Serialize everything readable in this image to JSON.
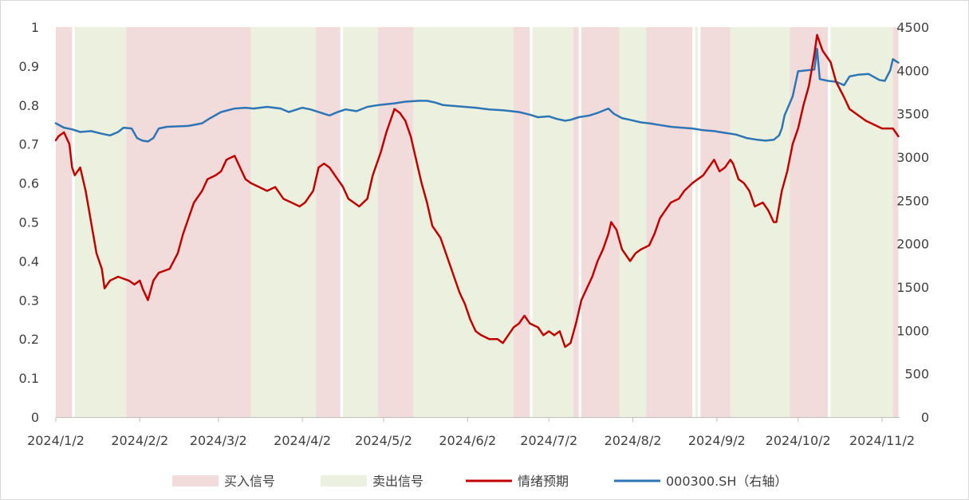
{
  "chart_data": {
    "type": "line",
    "title": "",
    "xlabel": "",
    "ylabel": "",
    "ylim": [
      0,
      1
    ],
    "y2lim": [
      0,
      4500
    ],
    "grid": false,
    "legend_position": "bottom",
    "x_ticks": [
      "2024/1/2",
      "2024/2/2",
      "2024/3/2",
      "2024/4/2",
      "2024/5/2",
      "2024/6/2",
      "2024/7/2",
      "2024/8/2",
      "2024/9/2",
      "2024/10/2",
      "2024/11/2"
    ],
    "y_ticks": [
      "0",
      "0.1",
      "0.2",
      "0.3",
      "0.4",
      "0.5",
      "0.6",
      "0.7",
      "0.8",
      "0.9",
      "1"
    ],
    "y2_ticks": [
      "0",
      "500",
      "1000",
      "1500",
      "2000",
      "2500",
      "3000",
      "3500",
      "4000",
      "4500"
    ],
    "x_start": "2024/1/2",
    "x_end": "2024/11/8",
    "colors": {
      "buy_band": "#f2dcdb",
      "sell_band": "#ebf1de",
      "sentiment": "#c00000",
      "index": "#2e75b6"
    },
    "legend": [
      {
        "label": "买入信号",
        "kind": "band",
        "color": "#f2dcdb"
      },
      {
        "label": "卖出信号",
        "kind": "band",
        "color": "#ebf1de"
      },
      {
        "label": "情绪预期",
        "kind": "line",
        "color": "#c00000"
      },
      {
        "label": "000300.SH（右轴）",
        "kind": "line",
        "color": "#2e75b6"
      }
    ],
    "signal_bands": [
      {
        "type": "buy",
        "start": "2024/1/2",
        "end": "2024/1/8"
      },
      {
        "type": "sell",
        "start": "2024/1/9",
        "end": "2024/1/28"
      },
      {
        "type": "buy",
        "start": "2024/1/28",
        "end": "2024/3/14"
      },
      {
        "type": "sell",
        "start": "2024/3/14",
        "end": "2024/4/7"
      },
      {
        "type": "buy",
        "start": "2024/4/7",
        "end": "2024/4/16"
      },
      {
        "type": "sell",
        "start": "2024/4/17",
        "end": "2024/4/30"
      },
      {
        "type": "buy",
        "start": "2024/4/30",
        "end": "2024/5/13"
      },
      {
        "type": "sell",
        "start": "2024/5/13",
        "end": "2024/6/19"
      },
      {
        "type": "buy",
        "start": "2024/6/19",
        "end": "2024/6/25"
      },
      {
        "type": "sell",
        "start": "2024/6/26",
        "end": "2024/7/11"
      },
      {
        "type": "buy",
        "start": "2024/7/11",
        "end": "2024/7/13"
      },
      {
        "type": "buy",
        "start": "2024/7/14",
        "end": "2024/7/28"
      },
      {
        "type": "sell",
        "start": "2024/7/28",
        "end": "2024/8/7"
      },
      {
        "type": "buy",
        "start": "2024/8/7",
        "end": "2024/8/24"
      },
      {
        "type": "sell",
        "start": "2024/8/25",
        "end": "2024/8/26"
      },
      {
        "type": "buy",
        "start": "2024/8/27",
        "end": "2024/9/7"
      },
      {
        "type": "sell",
        "start": "2024/9/7",
        "end": "2024/9/29"
      },
      {
        "type": "buy",
        "start": "2024/9/29",
        "end": "2024/10/13"
      },
      {
        "type": "sell",
        "start": "2024/10/14",
        "end": "2024/11/6"
      },
      {
        "type": "buy",
        "start": "2024/11/6",
        "end": "2024/11/8"
      }
    ],
    "series": [
      {
        "name": "情绪预期",
        "axis": "left",
        "points": [
          [
            "2024/1/2",
            0.71
          ],
          [
            "2024/1/3",
            0.72
          ],
          [
            "2024/1/5",
            0.73
          ],
          [
            "2024/1/7",
            0.7
          ],
          [
            "2024/1/8",
            0.64
          ],
          [
            "2024/1/9",
            0.62
          ],
          [
            "2024/1/11",
            0.64
          ],
          [
            "2024/1/13",
            0.58
          ],
          [
            "2024/1/15",
            0.5
          ],
          [
            "2024/1/17",
            0.42
          ],
          [
            "2024/1/19",
            0.38
          ],
          [
            "2024/1/20",
            0.33
          ],
          [
            "2024/1/22",
            0.35
          ],
          [
            "2024/1/25",
            0.36
          ],
          [
            "2024/1/29",
            0.35
          ],
          [
            "2024/1/31",
            0.34
          ],
          [
            "2024/2/2",
            0.35
          ],
          [
            "2024/2/3",
            0.33
          ],
          [
            "2024/2/5",
            0.3
          ],
          [
            "2024/2/7",
            0.35
          ],
          [
            "2024/2/9",
            0.37
          ],
          [
            "2024/2/13",
            0.38
          ],
          [
            "2024/2/16",
            0.42
          ],
          [
            "2024/2/18",
            0.47
          ],
          [
            "2024/2/20",
            0.51
          ],
          [
            "2024/2/22",
            0.55
          ],
          [
            "2024/2/25",
            0.58
          ],
          [
            "2024/2/27",
            0.61
          ],
          [
            "2024/3/1",
            0.62
          ],
          [
            "2024/3/3",
            0.63
          ],
          [
            "2024/3/5",
            0.66
          ],
          [
            "2024/3/8",
            0.67
          ],
          [
            "2024/3/10",
            0.64
          ],
          [
            "2024/3/12",
            0.61
          ],
          [
            "2024/3/14",
            0.6
          ],
          [
            "2024/3/17",
            0.59
          ],
          [
            "2024/3/20",
            0.58
          ],
          [
            "2024/3/23",
            0.59
          ],
          [
            "2024/3/26",
            0.56
          ],
          [
            "2024/3/29",
            0.55
          ],
          [
            "2024/4/1",
            0.54
          ],
          [
            "2024/4/3",
            0.55
          ],
          [
            "2024/4/6",
            0.58
          ],
          [
            "2024/4/8",
            0.64
          ],
          [
            "2024/4/10",
            0.65
          ],
          [
            "2024/4/12",
            0.64
          ],
          [
            "2024/4/15",
            0.61
          ],
          [
            "2024/4/17",
            0.59
          ],
          [
            "2024/4/19",
            0.56
          ],
          [
            "2024/4/21",
            0.55
          ],
          [
            "2024/4/23",
            0.54
          ],
          [
            "2024/4/26",
            0.56
          ],
          [
            "2024/4/28",
            0.62
          ],
          [
            "2024/5/1",
            0.68
          ],
          [
            "2024/5/3",
            0.73
          ],
          [
            "2024/5/5",
            0.77
          ],
          [
            "2024/5/6",
            0.79
          ],
          [
            "2024/5/8",
            0.78
          ],
          [
            "2024/5/10",
            0.76
          ],
          [
            "2024/5/12",
            0.72
          ],
          [
            "2024/5/14",
            0.66
          ],
          [
            "2024/5/16",
            0.6
          ],
          [
            "2024/5/18",
            0.55
          ],
          [
            "2024/5/20",
            0.49
          ],
          [
            "2024/5/23",
            0.46
          ],
          [
            "2024/5/26",
            0.4
          ],
          [
            "2024/5/28",
            0.36
          ],
          [
            "2024/5/30",
            0.32
          ],
          [
            "2024/6/1",
            0.29
          ],
          [
            "2024/6/3",
            0.25
          ],
          [
            "2024/6/5",
            0.22
          ],
          [
            "2024/6/7",
            0.21
          ],
          [
            "2024/6/10",
            0.2
          ],
          [
            "2024/6/13",
            0.2
          ],
          [
            "2024/6/15",
            0.19
          ],
          [
            "2024/6/17",
            0.21
          ],
          [
            "2024/6/19",
            0.23
          ],
          [
            "2024/6/21",
            0.24
          ],
          [
            "2024/6/23",
            0.26
          ],
          [
            "2024/6/25",
            0.24
          ],
          [
            "2024/6/28",
            0.23
          ],
          [
            "2024/6/30",
            0.21
          ],
          [
            "2024/7/2",
            0.22
          ],
          [
            "2024/7/4",
            0.21
          ],
          [
            "2024/7/6",
            0.22
          ],
          [
            "2024/7/8",
            0.18
          ],
          [
            "2024/7/10",
            0.19
          ],
          [
            "2024/7/12",
            0.24
          ],
          [
            "2024/7/14",
            0.3
          ],
          [
            "2024/7/16",
            0.33
          ],
          [
            "2024/7/18",
            0.36
          ],
          [
            "2024/7/20",
            0.4
          ],
          [
            "2024/7/22",
            0.43
          ],
          [
            "2024/7/24",
            0.47
          ],
          [
            "2024/7/25",
            0.5
          ],
          [
            "2024/7/27",
            0.48
          ],
          [
            "2024/7/29",
            0.43
          ],
          [
            "2024/7/31",
            0.41
          ],
          [
            "2024/8/1",
            0.4
          ],
          [
            "2024/8/3",
            0.42
          ],
          [
            "2024/8/5",
            0.43
          ],
          [
            "2024/8/8",
            0.44
          ],
          [
            "2024/8/10",
            0.47
          ],
          [
            "2024/8/12",
            0.51
          ],
          [
            "2024/8/14",
            0.53
          ],
          [
            "2024/8/16",
            0.55
          ],
          [
            "2024/8/19",
            0.56
          ],
          [
            "2024/8/21",
            0.58
          ],
          [
            "2024/8/24",
            0.6
          ],
          [
            "2024/8/26",
            0.61
          ],
          [
            "2024/8/28",
            0.62
          ],
          [
            "2024/8/30",
            0.64
          ],
          [
            "2024/9/1",
            0.66
          ],
          [
            "2024/9/3",
            0.63
          ],
          [
            "2024/9/5",
            0.64
          ],
          [
            "2024/9/7",
            0.66
          ],
          [
            "2024/9/8",
            0.65
          ],
          [
            "2024/9/10",
            0.61
          ],
          [
            "2024/9/12",
            0.6
          ],
          [
            "2024/9/14",
            0.58
          ],
          [
            "2024/9/16",
            0.54
          ],
          [
            "2024/9/19",
            0.55
          ],
          [
            "2024/9/21",
            0.53
          ],
          [
            "2024/9/23",
            0.5
          ],
          [
            "2024/9/24",
            0.5
          ],
          [
            "2024/9/26",
            0.58
          ],
          [
            "2024/9/28",
            0.63
          ],
          [
            "2024/9/30",
            0.7
          ],
          [
            "2024/10/2",
            0.74
          ],
          [
            "2024/10/4",
            0.8
          ],
          [
            "2024/10/6",
            0.85
          ],
          [
            "2024/10/8",
            0.93
          ],
          [
            "2024/10/9",
            0.98
          ],
          [
            "2024/10/11",
            0.94
          ],
          [
            "2024/10/14",
            0.91
          ],
          [
            "2024/10/16",
            0.86
          ],
          [
            "2024/10/19",
            0.82
          ],
          [
            "2024/10/21",
            0.79
          ],
          [
            "2024/10/23",
            0.78
          ],
          [
            "2024/10/25",
            0.77
          ],
          [
            "2024/10/27",
            0.76
          ],
          [
            "2024/10/30",
            0.75
          ],
          [
            "2024/11/2",
            0.74
          ],
          [
            "2024/11/4",
            0.74
          ],
          [
            "2024/11/6",
            0.74
          ],
          [
            "2024/11/8",
            0.72
          ]
        ]
      },
      {
        "name": "000300.SH（右轴）",
        "axis": "right",
        "points": [
          [
            "2024/1/2",
            3390
          ],
          [
            "2024/1/5",
            3340
          ],
          [
            "2024/1/8",
            3320
          ],
          [
            "2024/1/11",
            3290
          ],
          [
            "2024/1/15",
            3300
          ],
          [
            "2024/1/19",
            3270
          ],
          [
            "2024/1/22",
            3250
          ],
          [
            "2024/1/25",
            3290
          ],
          [
            "2024/1/27",
            3340
          ],
          [
            "2024/1/30",
            3330
          ],
          [
            "2024/2/1",
            3220
          ],
          [
            "2024/2/3",
            3190
          ],
          [
            "2024/2/5",
            3180
          ],
          [
            "2024/2/7",
            3220
          ],
          [
            "2024/2/9",
            3330
          ],
          [
            "2024/2/12",
            3350
          ],
          [
            "2024/2/20",
            3360
          ],
          [
            "2024/2/25",
            3390
          ],
          [
            "2024/2/28",
            3450
          ],
          [
            "2024/3/3",
            3520
          ],
          [
            "2024/3/8",
            3560
          ],
          [
            "2024/3/12",
            3570
          ],
          [
            "2024/3/15",
            3560
          ],
          [
            "2024/3/20",
            3580
          ],
          [
            "2024/3/25",
            3560
          ],
          [
            "2024/3/28",
            3520
          ],
          [
            "2024/4/2",
            3570
          ],
          [
            "2024/4/5",
            3550
          ],
          [
            "2024/4/9",
            3510
          ],
          [
            "2024/4/12",
            3480
          ],
          [
            "2024/4/15",
            3520
          ],
          [
            "2024/4/18",
            3550
          ],
          [
            "2024/4/22",
            3530
          ],
          [
            "2024/4/26",
            3580
          ],
          [
            "2024/4/30",
            3600
          ],
          [
            "2024/5/6",
            3620
          ],
          [
            "2024/5/10",
            3640
          ],
          [
            "2024/5/15",
            3650
          ],
          [
            "2024/5/18",
            3650
          ],
          [
            "2024/5/21",
            3630
          ],
          [
            "2024/5/24",
            3600
          ],
          [
            "2024/5/28",
            3590
          ],
          [
            "2024/6/1",
            3580
          ],
          [
            "2024/6/5",
            3570
          ],
          [
            "2024/6/10",
            3550
          ],
          [
            "2024/6/15",
            3540
          ],
          [
            "2024/6/18",
            3530
          ],
          [
            "2024/6/21",
            3520
          ],
          [
            "2024/6/25",
            3490
          ],
          [
            "2024/6/28",
            3460
          ],
          [
            "2024/7/2",
            3470
          ],
          [
            "2024/7/5",
            3440
          ],
          [
            "2024/7/8",
            3420
          ],
          [
            "2024/7/10",
            3430
          ],
          [
            "2024/7/13",
            3460
          ],
          [
            "2024/7/17",
            3480
          ],
          [
            "2024/7/20",
            3510
          ],
          [
            "2024/7/24",
            3560
          ],
          [
            "2024/7/26",
            3500
          ],
          [
            "2024/7/29",
            3450
          ],
          [
            "2024/8/1",
            3430
          ],
          [
            "2024/8/5",
            3400
          ],
          [
            "2024/8/8",
            3390
          ],
          [
            "2024/8/12",
            3370
          ],
          [
            "2024/8/16",
            3350
          ],
          [
            "2024/8/20",
            3340
          ],
          [
            "2024/8/24",
            3330
          ],
          [
            "2024/8/28",
            3310
          ],
          [
            "2024/9/1",
            3300
          ],
          [
            "2024/9/5",
            3280
          ],
          [
            "2024/9/9",
            3260
          ],
          [
            "2024/9/13",
            3220
          ],
          [
            "2024/9/17",
            3200
          ],
          [
            "2024/9/20",
            3190
          ],
          [
            "2024/9/23",
            3200
          ],
          [
            "2024/9/25",
            3250
          ],
          [
            "2024/9/26",
            3330
          ],
          [
            "2024/9/27",
            3480
          ],
          [
            "2024/9/30",
            3700
          ],
          [
            "2024/10/2",
            3990
          ],
          [
            "2024/10/8",
            4010
          ],
          [
            "2024/10/9",
            4250
          ],
          [
            "2024/10/10",
            3900
          ],
          [
            "2024/10/13",
            3880
          ],
          [
            "2024/10/16",
            3870
          ],
          [
            "2024/10/19",
            3830
          ],
          [
            "2024/10/21",
            3930
          ],
          [
            "2024/10/24",
            3950
          ],
          [
            "2024/10/28",
            3960
          ],
          [
            "2024/11/1",
            3890
          ],
          [
            "2024/11/3",
            3880
          ],
          [
            "2024/11/5",
            4000
          ],
          [
            "2024/11/6",
            4130
          ],
          [
            "2024/11/8",
            4090
          ]
        ]
      }
    ]
  }
}
